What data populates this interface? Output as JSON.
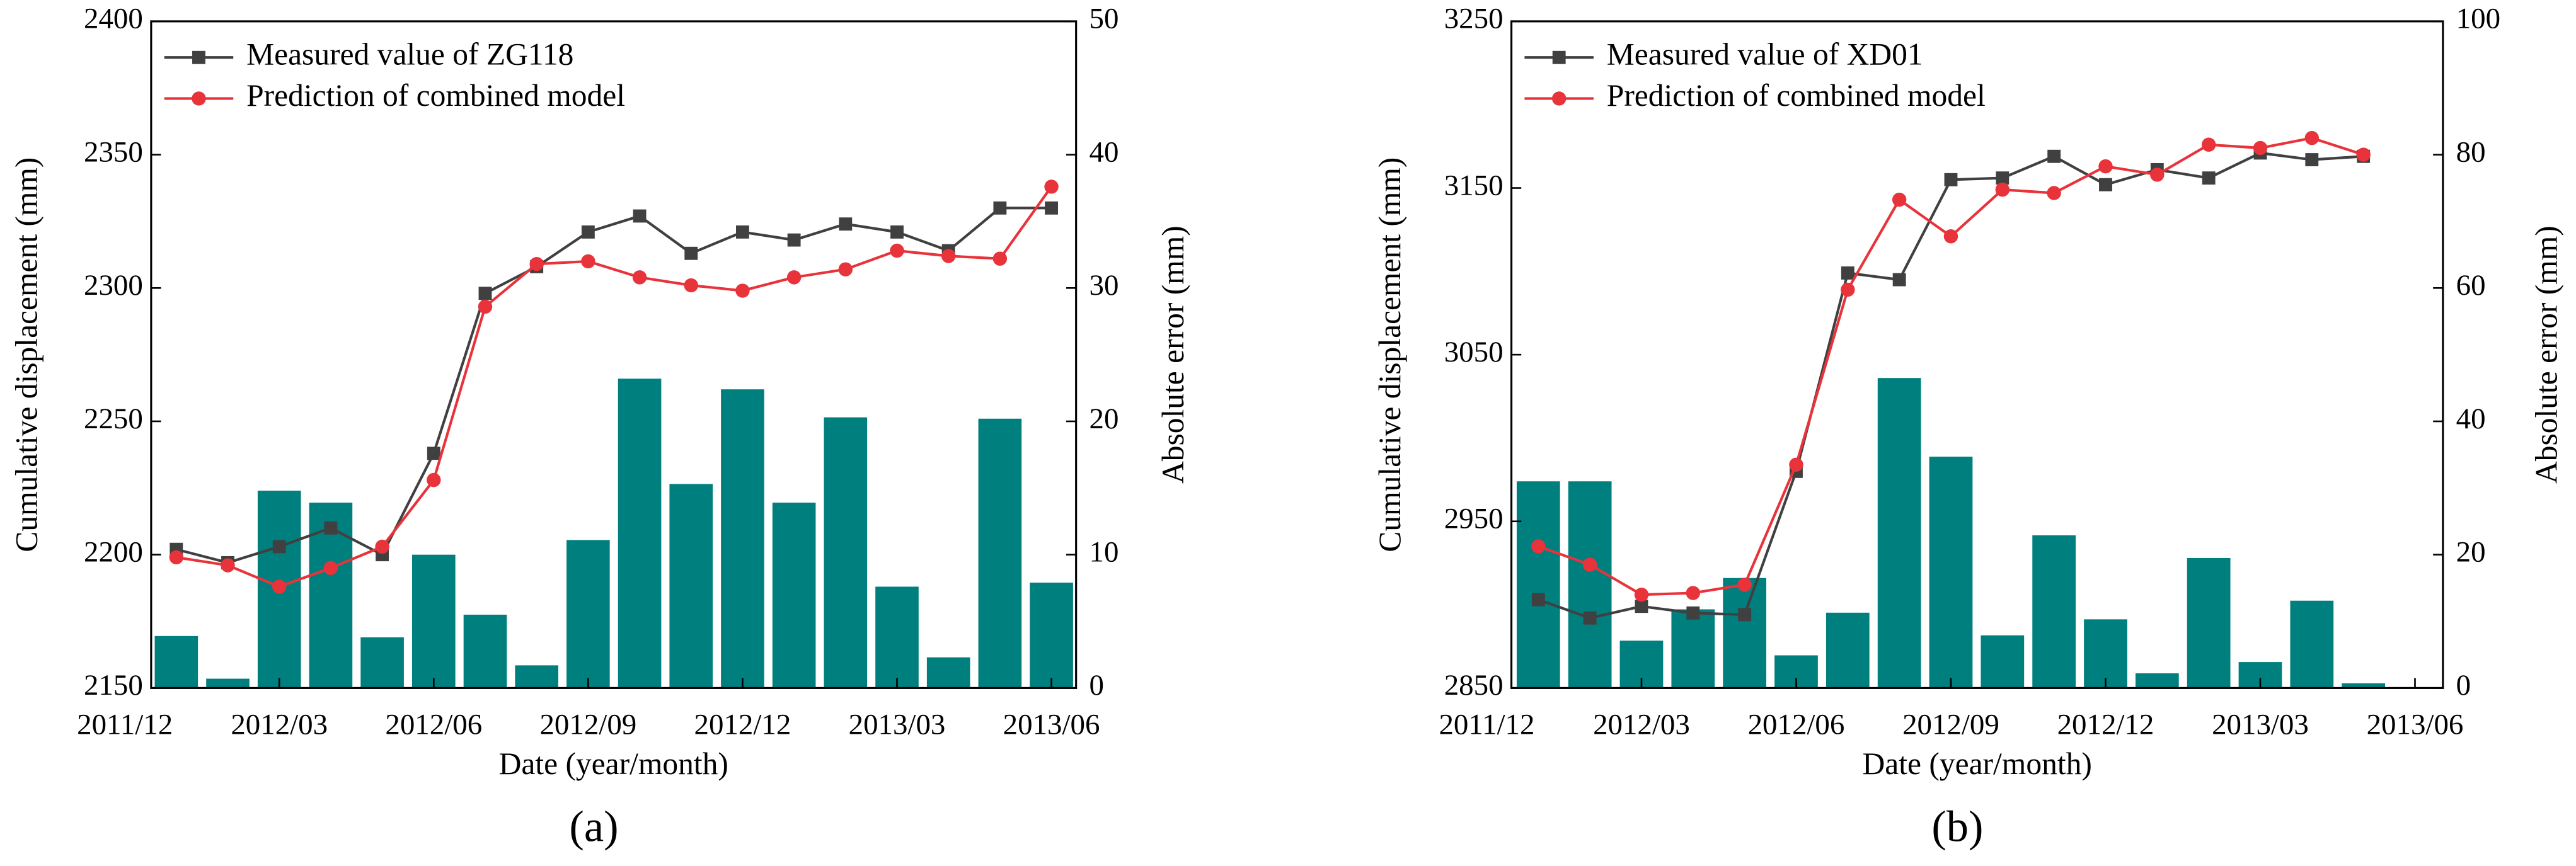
{
  "chart_data": [
    {
      "type": "bar_line",
      "label": "(a)",
      "xlabel": "Date (year/month)",
      "ylabel": "Cumulative displacement (mm)",
      "y2label": "Absolute error (mm)",
      "x": [
        "2012/01",
        "2012/02",
        "2012/03",
        "2012/04",
        "2012/05",
        "2012/06",
        "2012/07",
        "2012/08",
        "2012/09",
        "2012/10",
        "2012/11",
        "2012/12",
        "2013/01",
        "2013/02",
        "2013/03",
        "2013/04",
        "2013/05",
        "2013/06"
      ],
      "xlim": [
        "2011/12",
        "2013/06"
      ],
      "xticks": [
        "2011/12",
        "2012/03",
        "2012/06",
        "2012/09",
        "2012/12",
        "2013/03",
        "2013/06"
      ],
      "ylim": [
        2150,
        2400
      ],
      "yticks": [
        2150,
        2200,
        2250,
        2300,
        2350,
        2400
      ],
      "y2lim": [
        0,
        50
      ],
      "y2ticks": [
        0,
        10,
        20,
        30,
        40,
        50
      ],
      "legend": "upper left",
      "grid": false,
      "series": [
        {
          "kind": "bar",
          "axis": "y2",
          "color": "#007f7f",
          "values": [
            3.9,
            0.7,
            14.8,
            13.9,
            3.8,
            10.0,
            5.5,
            1.7,
            11.1,
            23.2,
            15.3,
            22.4,
            13.9,
            20.3,
            7.6,
            2.3,
            20.2,
            7.9
          ]
        },
        {
          "kind": "line",
          "name": "Measured value of ZG118",
          "color": "#404040",
          "marker": "square",
          "values": [
            2202,
            2197,
            2203,
            2210,
            2200,
            2238,
            2298,
            2308,
            2321,
            2327,
            2313,
            2321,
            2318,
            2324,
            2321,
            2314,
            2330,
            2330
          ]
        },
        {
          "kind": "line",
          "name": "Prediction of combined model",
          "color": "#e8333a",
          "marker": "circle",
          "values": [
            2199,
            2196,
            2188,
            2195,
            2203,
            2228,
            2293,
            2309,
            2310,
            2304,
            2301,
            2299,
            2304,
            2307,
            2314,
            2312,
            2311,
            2338
          ]
        }
      ]
    },
    {
      "type": "bar_line",
      "label": "(b)",
      "xlabel": "Date (year/month)",
      "ylabel": "Cumulative displacement (mm)",
      "y2label": "Absolute error (mm)",
      "x": [
        "2012/01",
        "2012/02",
        "2012/03",
        "2012/04",
        "2012/05",
        "2012/06",
        "2012/07",
        "2012/08",
        "2012/09",
        "2012/10",
        "2012/11",
        "2012/12",
        "2013/01",
        "2013/02",
        "2013/03",
        "2013/04",
        "2013/05"
      ],
      "xlim": [
        "2011/12",
        "2013/06"
      ],
      "xticks": [
        "2011/12",
        "2012/03",
        "2012/06",
        "2012/09",
        "2012/12",
        "2013/03",
        "2013/06"
      ],
      "ylim": [
        2850,
        3250
      ],
      "yticks": [
        2850,
        2950,
        3050,
        3150,
        3250
      ],
      "y2lim": [
        0,
        100
      ],
      "y2ticks": [
        0,
        20,
        40,
        60,
        80,
        100
      ],
      "legend": "upper left",
      "grid": false,
      "series": [
        {
          "kind": "bar",
          "axis": "y2",
          "color": "#007f7f",
          "values": [
            31,
            31,
            7.1,
            11.8,
            16.5,
            4.9,
            11.3,
            46.5,
            34.7,
            7.9,
            22.9,
            10.3,
            2.2,
            19.5,
            3.9,
            13.1,
            0.7
          ]
        },
        {
          "kind": "line",
          "name": "Measured value of XD01",
          "color": "#404040",
          "marker": "square",
          "values": [
            2903,
            2892,
            2899,
            2895,
            2894,
            2980,
            3099,
            3095,
            3155,
            3156,
            3169,
            3152,
            3161,
            3156,
            3171,
            3167,
            3169
          ]
        },
        {
          "kind": "line",
          "name": "Prediction of combined model",
          "color": "#e8333a",
          "marker": "circle",
          "values": [
            2935,
            2924,
            2906,
            2907,
            2912,
            2984,
            3089,
            3143,
            3121,
            3149,
            3147,
            3163,
            3158,
            3176,
            3174,
            3180,
            3170
          ]
        }
      ]
    }
  ]
}
